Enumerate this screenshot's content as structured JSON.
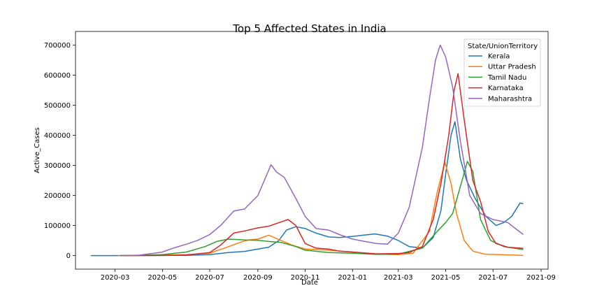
{
  "chart_data": {
    "type": "line",
    "title": "Top 5 Affected States in India",
    "xlabel": "Date",
    "ylabel": "Active_Cases",
    "xlim": [
      "2020-01-10",
      "2021-09-10"
    ],
    "ylim": [
      -45000,
      745000
    ],
    "x_ticks": [
      "2020-03",
      "2020-05",
      "2020-07",
      "2020-09",
      "2020-11",
      "2021-01",
      "2021-03",
      "2021-05",
      "2021-07",
      "2021-09"
    ],
    "y_ticks": [
      "0",
      "100000",
      "200000",
      "300000",
      "400000",
      "500000",
      "600000",
      "700000"
    ],
    "grid": false,
    "legend": {
      "title": "State/UnionTerritory",
      "placement": "top-right"
    },
    "series": [
      {
        "name": "Kerala",
        "color": "#1f77b4",
        "points": [
          [
            "2020-01-30",
            0
          ],
          [
            "2020-03-01",
            0
          ],
          [
            "2020-04-01",
            300
          ],
          [
            "2020-05-01",
            500
          ],
          [
            "2020-06-01",
            1000
          ],
          [
            "2020-07-01",
            3000
          ],
          [
            "2020-07-25",
            10000
          ],
          [
            "2020-08-15",
            14000
          ],
          [
            "2020-09-01",
            22000
          ],
          [
            "2020-09-15",
            28000
          ],
          [
            "2020-09-28",
            50000
          ],
          [
            "2020-10-08",
            85000
          ],
          [
            "2020-10-20",
            96000
          ],
          [
            "2020-11-01",
            90000
          ],
          [
            "2020-11-15",
            75000
          ],
          [
            "2020-12-01",
            62000
          ],
          [
            "2020-12-15",
            60000
          ],
          [
            "2021-01-01",
            64000
          ],
          [
            "2021-01-15",
            68000
          ],
          [
            "2021-01-30",
            72000
          ],
          [
            "2021-02-15",
            65000
          ],
          [
            "2021-03-01",
            50000
          ],
          [
            "2021-03-15",
            30000
          ],
          [
            "2021-04-01",
            25000
          ],
          [
            "2021-04-15",
            60000
          ],
          [
            "2021-04-25",
            150000
          ],
          [
            "2021-05-01",
            270000
          ],
          [
            "2021-05-08",
            400000
          ],
          [
            "2021-05-13",
            445000
          ],
          [
            "2021-05-20",
            320000
          ],
          [
            "2021-05-28",
            250000
          ],
          [
            "2021-06-08",
            190000
          ],
          [
            "2021-06-22",
            130000
          ],
          [
            "2021-07-05",
            100000
          ],
          [
            "2021-07-15",
            110000
          ],
          [
            "2021-07-25",
            130000
          ],
          [
            "2021-08-05",
            175000
          ],
          [
            "2021-08-09",
            172000
          ]
        ]
      },
      {
        "name": "Uttar Pradesh",
        "color": "#ff7f0e",
        "points": [
          [
            "2020-03-05",
            0
          ],
          [
            "2020-04-01",
            200
          ],
          [
            "2020-05-01",
            1500
          ],
          [
            "2020-06-01",
            3000
          ],
          [
            "2020-07-01",
            8000
          ],
          [
            "2020-07-20",
            25000
          ],
          [
            "2020-08-10",
            45000
          ],
          [
            "2020-08-20",
            52000
          ],
          [
            "2020-09-01",
            55000
          ],
          [
            "2020-09-15",
            68000
          ],
          [
            "2020-10-01",
            50000
          ],
          [
            "2020-10-15",
            35000
          ],
          [
            "2020-11-01",
            22000
          ],
          [
            "2020-12-01",
            18000
          ],
          [
            "2021-01-01",
            12000
          ],
          [
            "2021-02-01",
            5000
          ],
          [
            "2021-03-01",
            3000
          ],
          [
            "2021-03-20",
            8000
          ],
          [
            "2021-04-10",
            80000
          ],
          [
            "2021-04-20",
            210000
          ],
          [
            "2021-04-30",
            310000
          ],
          [
            "2021-05-08",
            240000
          ],
          [
            "2021-05-15",
            140000
          ],
          [
            "2021-05-25",
            50000
          ],
          [
            "2021-06-05",
            15000
          ],
          [
            "2021-06-20",
            5000
          ],
          [
            "2021-08-09",
            600
          ]
        ]
      },
      {
        "name": "Tamil Nadu",
        "color": "#2ca02c",
        "points": [
          [
            "2020-03-07",
            0
          ],
          [
            "2020-04-01",
            1000
          ],
          [
            "2020-05-01",
            3000
          ],
          [
            "2020-06-01",
            12000
          ],
          [
            "2020-06-25",
            30000
          ],
          [
            "2020-07-10",
            47000
          ],
          [
            "2020-07-25",
            55000
          ],
          [
            "2020-08-15",
            52000
          ],
          [
            "2020-09-01",
            51000
          ],
          [
            "2020-09-15",
            47000
          ],
          [
            "2020-10-01",
            44000
          ],
          [
            "2020-10-20",
            30000
          ],
          [
            "2020-11-01",
            18000
          ],
          [
            "2020-12-01",
            10000
          ],
          [
            "2021-01-01",
            8000
          ],
          [
            "2021-02-01",
            4000
          ],
          [
            "2021-03-01",
            5000
          ],
          [
            "2021-04-01",
            25000
          ],
          [
            "2021-04-20",
            80000
          ],
          [
            "2021-05-01",
            110000
          ],
          [
            "2021-05-10",
            140000
          ],
          [
            "2021-05-20",
            230000
          ],
          [
            "2021-05-29",
            313000
          ],
          [
            "2021-06-05",
            280000
          ],
          [
            "2021-06-15",
            120000
          ],
          [
            "2021-06-28",
            50000
          ],
          [
            "2021-07-15",
            30000
          ],
          [
            "2021-08-09",
            20000
          ]
        ]
      },
      {
        "name": "Karnataka",
        "color": "#d62728",
        "points": [
          [
            "2020-03-09",
            0
          ],
          [
            "2020-04-01",
            200
          ],
          [
            "2020-05-01",
            500
          ],
          [
            "2020-06-01",
            2000
          ],
          [
            "2020-07-01",
            10000
          ],
          [
            "2020-07-15",
            35000
          ],
          [
            "2020-08-01",
            75000
          ],
          [
            "2020-08-15",
            82000
          ],
          [
            "2020-09-01",
            92000
          ],
          [
            "2020-09-15",
            98000
          ],
          [
            "2020-10-01",
            112000
          ],
          [
            "2020-10-10",
            120000
          ],
          [
            "2020-10-20",
            100000
          ],
          [
            "2020-11-01",
            40000
          ],
          [
            "2020-11-15",
            25000
          ],
          [
            "2020-12-01",
            22000
          ],
          [
            "2020-12-15",
            15000
          ],
          [
            "2021-01-01",
            12000
          ],
          [
            "2021-02-01",
            6000
          ],
          [
            "2021-03-01",
            7000
          ],
          [
            "2021-03-15",
            10000
          ],
          [
            "2021-04-01",
            30000
          ],
          [
            "2021-04-15",
            120000
          ],
          [
            "2021-04-25",
            240000
          ],
          [
            "2021-05-05",
            400000
          ],
          [
            "2021-05-12",
            550000
          ],
          [
            "2021-05-17",
            605000
          ],
          [
            "2021-05-25",
            450000
          ],
          [
            "2021-06-05",
            250000
          ],
          [
            "2021-06-15",
            180000
          ],
          [
            "2021-06-25",
            80000
          ],
          [
            "2021-07-05",
            40000
          ],
          [
            "2021-07-20",
            28000
          ],
          [
            "2021-08-09",
            24000
          ]
        ]
      },
      {
        "name": "Maharashtra",
        "color": "#9467bd",
        "points": [
          [
            "2020-03-09",
            0
          ],
          [
            "2020-04-01",
            1500
          ],
          [
            "2020-04-20",
            8000
          ],
          [
            "2020-05-01",
            12000
          ],
          [
            "2020-05-15",
            25000
          ],
          [
            "2020-06-01",
            38000
          ],
          [
            "2020-06-15",
            50000
          ],
          [
            "2020-07-01",
            70000
          ],
          [
            "2020-07-15",
            100000
          ],
          [
            "2020-08-01",
            148000
          ],
          [
            "2020-08-15",
            155000
          ],
          [
            "2020-09-01",
            200000
          ],
          [
            "2020-09-18",
            302000
          ],
          [
            "2020-09-25",
            278000
          ],
          [
            "2020-10-05",
            260000
          ],
          [
            "2020-10-20",
            190000
          ],
          [
            "2020-11-01",
            130000
          ],
          [
            "2020-11-15",
            90000
          ],
          [
            "2020-12-01",
            85000
          ],
          [
            "2020-12-15",
            70000
          ],
          [
            "2021-01-01",
            55000
          ],
          [
            "2021-01-15",
            48000
          ],
          [
            "2021-02-01",
            40000
          ],
          [
            "2021-02-15",
            38000
          ],
          [
            "2021-03-01",
            75000
          ],
          [
            "2021-03-15",
            160000
          ],
          [
            "2021-04-01",
            360000
          ],
          [
            "2021-04-10",
            520000
          ],
          [
            "2021-04-18",
            650000
          ],
          [
            "2021-04-24",
            700000
          ],
          [
            "2021-05-01",
            660000
          ],
          [
            "2021-05-10",
            560000
          ],
          [
            "2021-05-20",
            380000
          ],
          [
            "2021-06-01",
            200000
          ],
          [
            "2021-06-15",
            140000
          ],
          [
            "2021-07-01",
            120000
          ],
          [
            "2021-07-20",
            110000
          ],
          [
            "2021-08-09",
            70000
          ]
        ]
      }
    ]
  }
}
